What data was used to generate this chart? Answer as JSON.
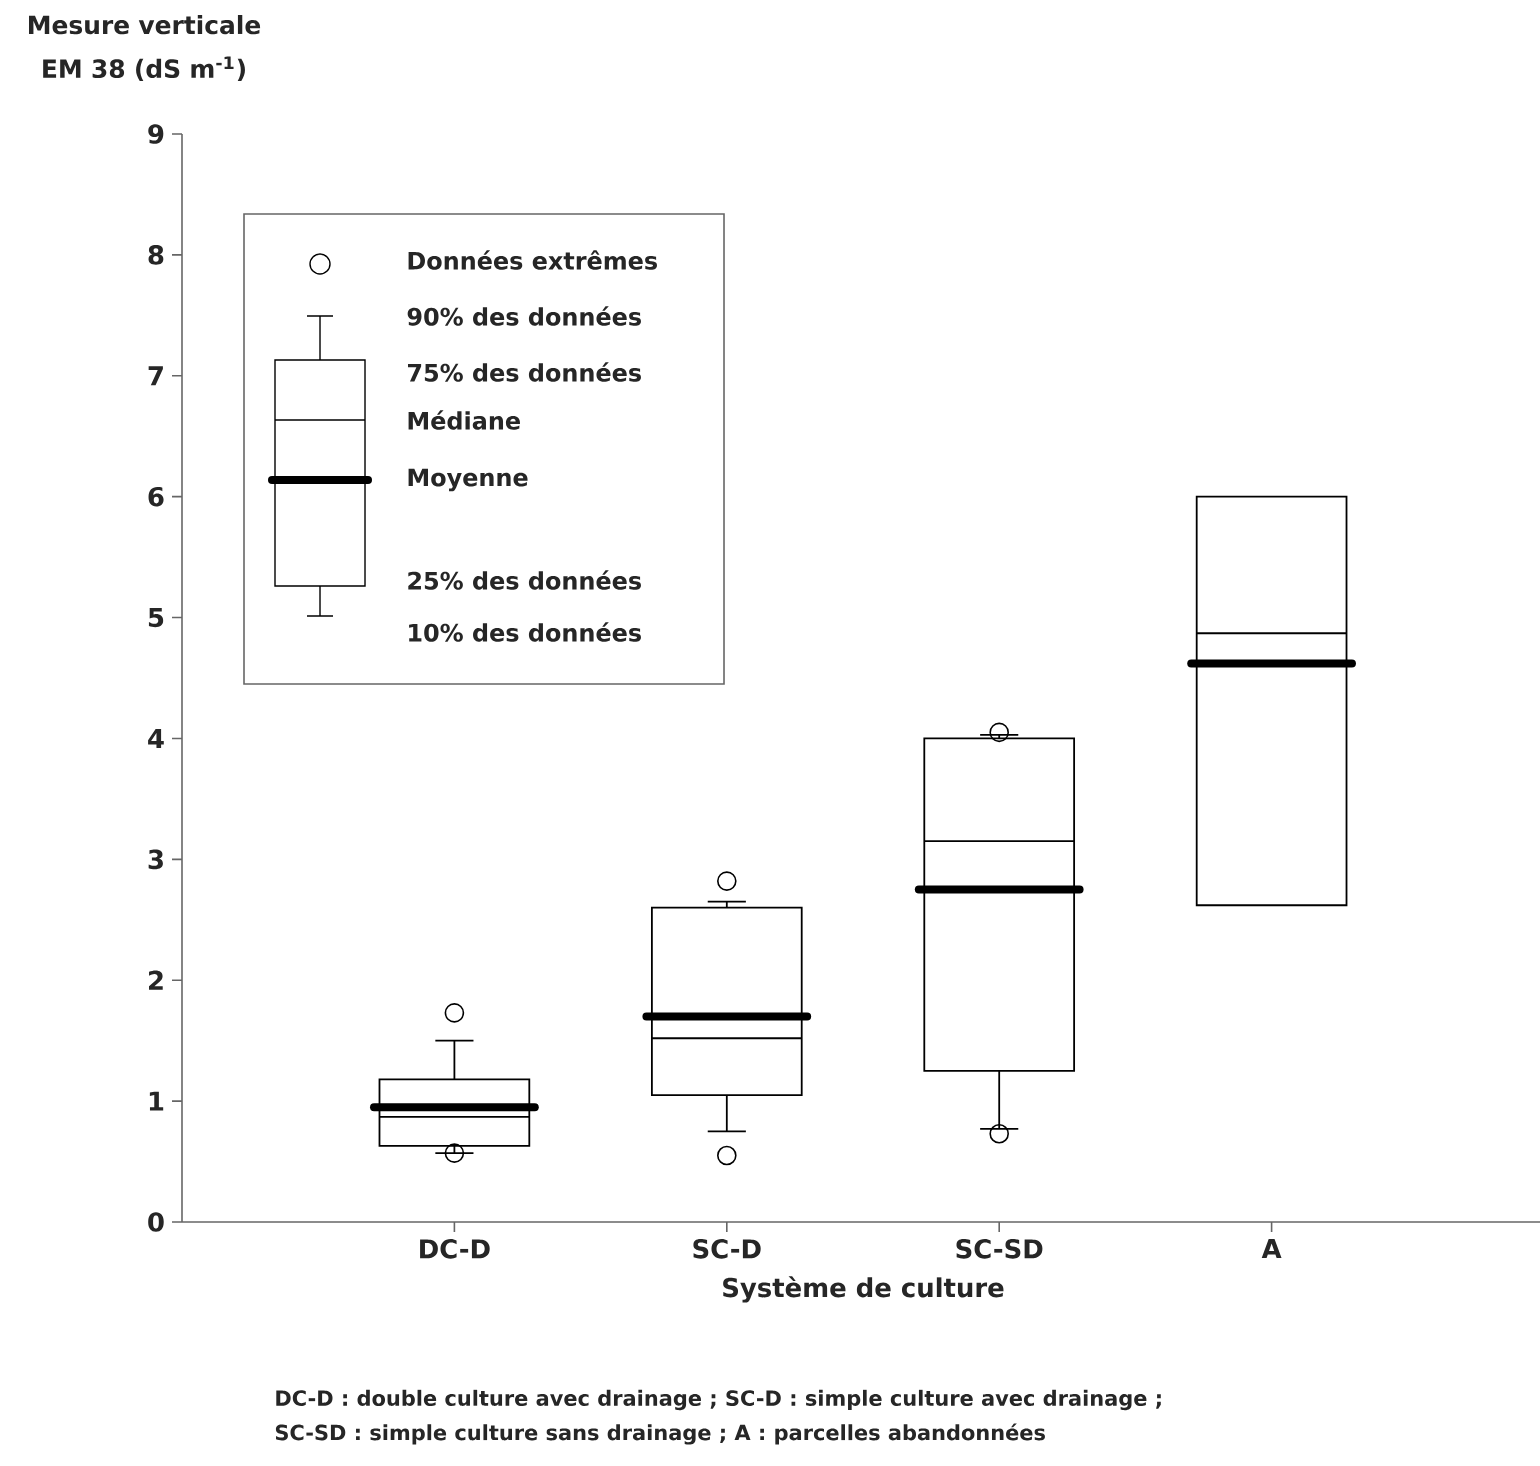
{
  "chart_data": {
    "type": "box",
    "xlabel": "Système de culture",
    "ylabel": "Mesure verticale EM 38 (dS m$^{-1}$)",
    "categories": [
      "DC-D",
      "SC-D",
      "SC-SD",
      "A"
    ],
    "boxes": [
      {
        "low": 0.57,
        "q1": 0.63,
        "median": 0.87,
        "q3": 1.18,
        "high": 1.5,
        "mean": 0.95,
        "outliers": [
          1.73,
          0.57
        ]
      },
      {
        "low": 0.75,
        "q1": 1.05,
        "median": 1.52,
        "q3": 2.6,
        "high": 2.65,
        "mean": 1.7,
        "outliers": [
          2.82,
          0.55
        ]
      },
      {
        "low": 0.77,
        "q1": 1.25,
        "median": 3.15,
        "q3": 4.0,
        "high": 4.03,
        "mean": 2.75,
        "outliers": [
          4.05,
          0.73
        ]
      },
      {
        "low": 2.62,
        "q1": 2.62,
        "median": 4.87,
        "q3": 6.0,
        "high": 6.0,
        "mean": 4.62
      }
    ],
    "ylim": [
      0,
      9
    ],
    "yticks": [
      0,
      1,
      2,
      3,
      4,
      5,
      6,
      7,
      8,
      9
    ],
    "annotations": [
      "Données extrêmes",
      "90% des données",
      "75% des données",
      "Médiane",
      "Moyenne",
      "25% des données",
      "10% des données",
      "DC-D : double culture avec drainage ; SC-D : simple culture avec drainage ;",
      "SC-SD : simple culture sans drainage ; A : parcelles abandonnées"
    ]
  }
}
